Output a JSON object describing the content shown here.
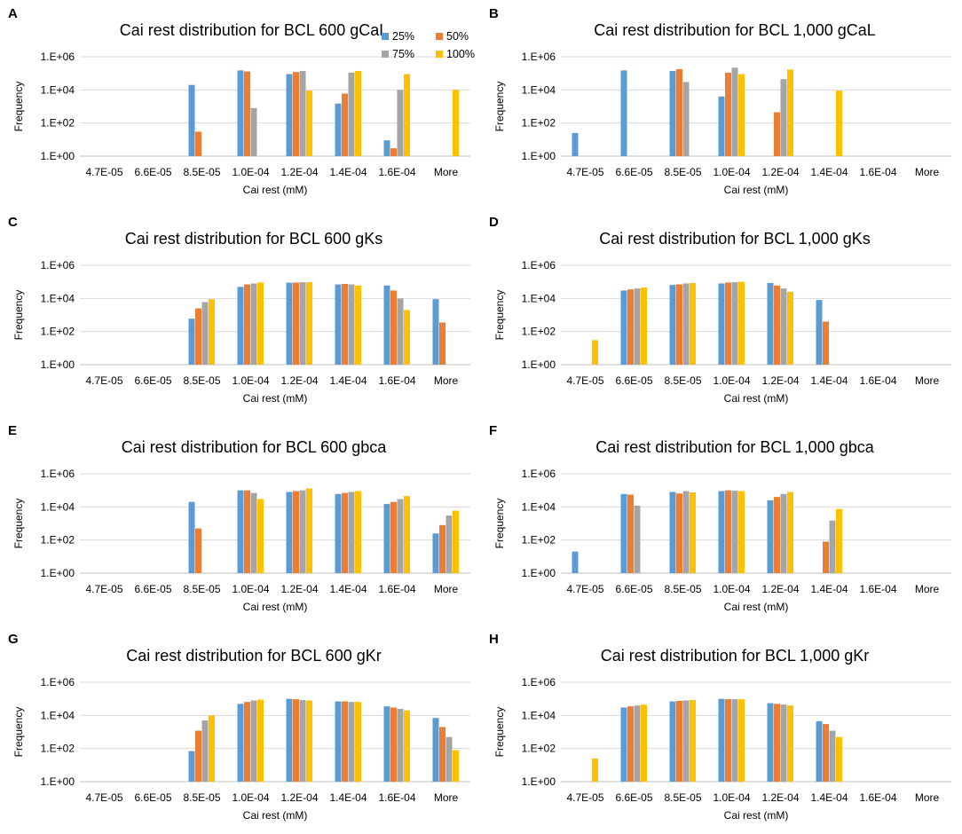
{
  "figure": {
    "series_names": [
      "25%",
      "50%",
      "75%",
      "100%"
    ],
    "series_colors": [
      "#5b9bd5",
      "#ed7d31",
      "#a5a5a5",
      "#ffc000"
    ]
  },
  "chart_data": [
    {
      "panel_label": "A",
      "type": "bar",
      "title": "Cai rest distribution for BCL 600 gCaL",
      "xlabel": "Cai rest (mM)",
      "ylabel": "Frequency",
      "yscale": "log",
      "ylim": [
        1,
        1000000
      ],
      "yticks": [
        "1.E+00",
        "1.E+02",
        "1.E+04",
        "1.E+06"
      ],
      "categories": [
        "4.7E-05",
        "6.6E-05",
        "8.5E-05",
        "1.0E-04",
        "1.2E-04",
        "1.4E-04",
        "1.6E-04",
        "More"
      ],
      "legend": "top-right",
      "series": [
        {
          "name": "25%",
          "values": [
            0,
            0,
            20000,
            150000,
            90000,
            1500,
            9,
            0
          ]
        },
        {
          "name": "50%",
          "values": [
            0,
            0,
            30,
            130000,
            120000,
            6000,
            3,
            0
          ]
        },
        {
          "name": "75%",
          "values": [
            0,
            0,
            0,
            800,
            140000,
            110000,
            10000,
            0
          ]
        },
        {
          "name": "100%",
          "values": [
            0,
            0,
            0,
            0,
            9000,
            140000,
            90000,
            10000
          ]
        }
      ]
    },
    {
      "panel_label": "B",
      "type": "bar",
      "title": "Cai rest distribution for BCL 1,000 gCaL",
      "xlabel": "Cai rest (mM)",
      "ylabel": "Frequency",
      "yscale": "log",
      "ylim": [
        1,
        1000000
      ],
      "yticks": [
        "1.E+00",
        "1.E+02",
        "1.E+04",
        "1.E+06"
      ],
      "categories": [
        "4.7E-05",
        "6.6E-05",
        "8.5E-05",
        "1.0E-04",
        "1.2E-04",
        "1.4E-04",
        "1.6E-04",
        "More"
      ],
      "series": [
        {
          "name": "25%",
          "values": [
            25,
            150000,
            140000,
            4000,
            0,
            0,
            0,
            0
          ]
        },
        {
          "name": "50%",
          "values": [
            0,
            0,
            180000,
            110000,
            450,
            0,
            0,
            0
          ]
        },
        {
          "name": "75%",
          "values": [
            0,
            0,
            30000,
            220000,
            45000,
            0,
            0,
            0
          ]
        },
        {
          "name": "100%",
          "values": [
            0,
            0,
            0,
            90000,
            170000,
            9000,
            0,
            0
          ]
        }
      ]
    },
    {
      "panel_label": "C",
      "type": "bar",
      "title": "Cai rest distribution for BCL 600 gKs",
      "xlabel": "Cai rest (mM)",
      "ylabel": "Frequency",
      "yscale": "log",
      "ylim": [
        1,
        1000000
      ],
      "yticks": [
        "1.E+00",
        "1.E+02",
        "1.E+04",
        "1.E+06"
      ],
      "categories": [
        "4.7E-05",
        "6.6E-05",
        "8.5E-05",
        "1.0E-04",
        "1.2E-04",
        "1.4E-04",
        "1.6E-04",
        "More"
      ],
      "series": [
        {
          "name": "25%",
          "values": [
            0,
            0,
            600,
            50000,
            90000,
            70000,
            60000,
            9000
          ]
        },
        {
          "name": "50%",
          "values": [
            0,
            0,
            2500,
            70000,
            90000,
            75000,
            30000,
            350
          ]
        },
        {
          "name": "75%",
          "values": [
            0,
            0,
            6000,
            80000,
            95000,
            70000,
            10000,
            0
          ]
        },
        {
          "name": "100%",
          "values": [
            0,
            0,
            9000,
            90000,
            95000,
            60000,
            2000,
            0
          ]
        }
      ]
    },
    {
      "panel_label": "D",
      "type": "bar",
      "title": "Cai rest distribution for BCL 1,000 gKs",
      "xlabel": "Cai rest (mM)",
      "ylabel": "Frequency",
      "yscale": "log",
      "ylim": [
        1,
        1000000
      ],
      "yticks": [
        "1.E+00",
        "1.E+02",
        "1.E+04",
        "1.E+06"
      ],
      "categories": [
        "4.7E-05",
        "6.6E-05",
        "8.5E-05",
        "1.0E-04",
        "1.2E-04",
        "1.4E-04",
        "1.6E-04",
        "More"
      ],
      "series": [
        {
          "name": "25%",
          "values": [
            0,
            30000,
            65000,
            80000,
            85000,
            8000,
            0,
            0
          ]
        },
        {
          "name": "50%",
          "values": [
            0,
            35000,
            70000,
            90000,
            60000,
            400,
            0,
            0
          ]
        },
        {
          "name": "75%",
          "values": [
            0,
            40000,
            80000,
            95000,
            40000,
            0,
            0,
            0
          ]
        },
        {
          "name": "100%",
          "values": [
            30,
            45000,
            85000,
            100000,
            25000,
            0,
            0,
            0
          ]
        }
      ]
    },
    {
      "panel_label": "E",
      "type": "bar",
      "title": "Cai rest distribution for BCL 600 gbca",
      "xlabel": "Cai rest (mM)",
      "ylabel": "Frequency",
      "yscale": "log",
      "ylim": [
        1,
        1000000
      ],
      "yticks": [
        "1.E+00",
        "1.E+02",
        "1.E+04",
        "1.E+06"
      ],
      "categories": [
        "4.7E-05",
        "6.6E-05",
        "8.5E-05",
        "1.0E-04",
        "1.2E-04",
        "1.4E-04",
        "1.6E-04",
        "More"
      ],
      "series": [
        {
          "name": "25%",
          "values": [
            0,
            0,
            20000,
            100000,
            80000,
            60000,
            15000,
            250
          ]
        },
        {
          "name": "50%",
          "values": [
            0,
            0,
            500,
            100000,
            90000,
            70000,
            20000,
            800
          ]
        },
        {
          "name": "75%",
          "values": [
            0,
            0,
            0,
            70000,
            100000,
            80000,
            30000,
            3000
          ]
        },
        {
          "name": "100%",
          "values": [
            0,
            0,
            0,
            30000,
            130000,
            90000,
            45000,
            6000
          ]
        }
      ]
    },
    {
      "panel_label": "F",
      "type": "bar",
      "title": "Cai rest distribution for BCL 1,000 gbca",
      "xlabel": "Cai rest (mM)",
      "ylabel": "Frequency",
      "yscale": "log",
      "ylim": [
        1,
        1000000
      ],
      "yticks": [
        "1.E+00",
        "1.E+02",
        "1.E+04",
        "1.E+06"
      ],
      "categories": [
        "4.7E-05",
        "6.6E-05",
        "8.5E-05",
        "1.0E-04",
        "1.2E-04",
        "1.4E-04",
        "1.6E-04",
        "More"
      ],
      "series": [
        {
          "name": "25%",
          "values": [
            20,
            60000,
            80000,
            90000,
            25000,
            0,
            0,
            0
          ]
        },
        {
          "name": "50%",
          "values": [
            0,
            55000,
            65000,
            100000,
            40000,
            80,
            0,
            0
          ]
        },
        {
          "name": "75%",
          "values": [
            0,
            12000,
            90000,
            95000,
            60000,
            1500,
            0,
            0
          ]
        },
        {
          "name": "100%",
          "values": [
            0,
            0,
            75000,
            90000,
            80000,
            7500,
            0,
            0
          ]
        }
      ]
    },
    {
      "panel_label": "G",
      "type": "bar",
      "title": "Cai rest distribution for BCL 600 gKr",
      "xlabel": "Cai rest (mM)",
      "ylabel": "Frequency",
      "yscale": "log",
      "ylim": [
        1,
        1000000
      ],
      "yticks": [
        "1.E+00",
        "1.E+02",
        "1.E+04",
        "1.E+06"
      ],
      "categories": [
        "4.7E-05",
        "6.6E-05",
        "8.5E-05",
        "1.0E-04",
        "1.2E-04",
        "1.4E-04",
        "1.6E-04",
        "More"
      ],
      "series": [
        {
          "name": "25%",
          "values": [
            0,
            0,
            70,
            50000,
            100000,
            70000,
            35000,
            7000
          ]
        },
        {
          "name": "50%",
          "values": [
            0,
            0,
            1200,
            65000,
            95000,
            70000,
            30000,
            2000
          ]
        },
        {
          "name": "75%",
          "values": [
            0,
            0,
            5000,
            80000,
            85000,
            65000,
            25000,
            500
          ]
        },
        {
          "name": "100%",
          "values": [
            0,
            0,
            10000,
            90000,
            80000,
            65000,
            20000,
            80
          ]
        }
      ]
    },
    {
      "panel_label": "H",
      "type": "bar",
      "title": "Cai rest distribution for BCL 1,000 gKr",
      "xlabel": "Cai rest (mM)",
      "ylabel": "Frequency",
      "yscale": "log",
      "ylim": [
        1,
        1000000
      ],
      "yticks": [
        "1.E+00",
        "1.E+02",
        "1.E+04",
        "1.E+06"
      ],
      "categories": [
        "4.7E-05",
        "6.6E-05",
        "8.5E-05",
        "1.0E-04",
        "1.2E-04",
        "1.4E-04",
        "1.6E-04",
        "More"
      ],
      "series": [
        {
          "name": "25%",
          "values": [
            0,
            30000,
            70000,
            100000,
            55000,
            4500,
            0,
            0
          ]
        },
        {
          "name": "50%",
          "values": [
            0,
            35000,
            75000,
            95000,
            50000,
            3000,
            0,
            0
          ]
        },
        {
          "name": "75%",
          "values": [
            0,
            40000,
            80000,
            95000,
            45000,
            1200,
            0,
            0
          ]
        },
        {
          "name": "100%",
          "values": [
            25,
            45000,
            85000,
            95000,
            40000,
            500,
            0,
            0
          ]
        }
      ]
    }
  ]
}
